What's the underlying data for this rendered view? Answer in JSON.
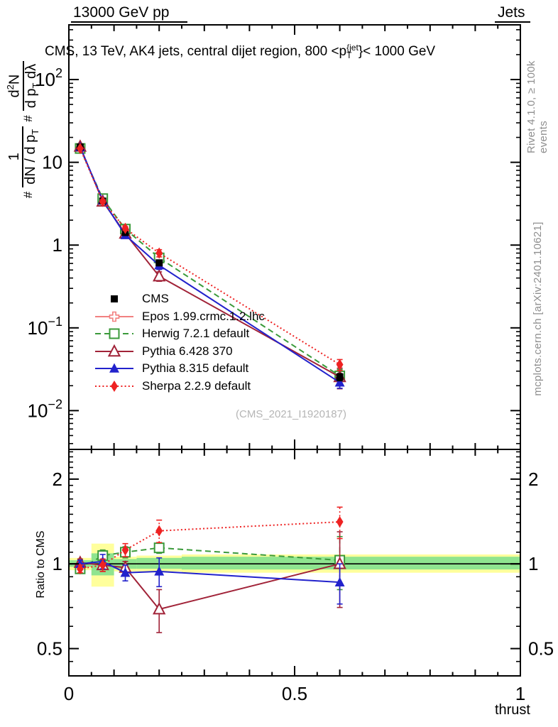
{
  "header": {
    "left": "13000 GeV pp",
    "right": "Jets"
  },
  "title": {
    "pre": "CMS, 13 TeV, AK4 jets, central dijet region, 800 <p",
    "sup": "{jet",
    "sub": "T",
    "post": "}< 1000 GeV"
  },
  "ylabel": {
    "hash1": "#",
    "f1num": "1",
    "f1den": "dN / d p",
    "f1den_sub": "T",
    "hash2": "#",
    "f2num_a": "d",
    "f2num_sup": "2",
    "f2num_b": "N",
    "f2den_a": "d p",
    "f2den_sub": "T",
    "f2den_b": " dλ"
  },
  "ratio_ylabel": "Ratio to CMS",
  "watermark": "(CMS_2021_I1920187)",
  "side_notes": {
    "top": "Rivet 4.1.0, ≥ 100k events",
    "bottom": "mcplots.cern.ch [arXiv:2401.10621]"
  },
  "band_colors": {
    "yellow": "#ffff9c",
    "green": "#8fe48f"
  },
  "legend": [
    {
      "label": "CMS",
      "color": "#000000",
      "marker": "square-filled",
      "line": "none",
      "marker_size": 10
    },
    {
      "label": "Epos 1.99.crmc.1.2.lhc",
      "color": "#f28080",
      "marker": "plus-open",
      "line": "solid",
      "marker_size": 13
    },
    {
      "label": "Herwig 7.2.1 default",
      "color": "#3a9a3a",
      "marker": "square-open",
      "line": "dashed",
      "marker_size": 13
    },
    {
      "label": "Pythia 6.428 370",
      "color": "#a12338",
      "marker": "triangle-open",
      "line": "solid",
      "marker_size": 13
    },
    {
      "label": "Pythia 8.315 default",
      "color": "#2222cc",
      "marker": "triangle-filled",
      "line": "solid",
      "marker_size": 12
    },
    {
      "label": "Sherpa 2.2.9 default",
      "color": "#ee2222",
      "marker": "diamond-filled",
      "line": "dotted",
      "marker_size": 13
    }
  ],
  "chart_data": {
    "type": "line",
    "xlabel": "thrust",
    "xlim": [
      0,
      1
    ],
    "x": [
      0.025,
      0.075,
      0.125,
      0.2,
      0.6
    ],
    "xticks": [
      {
        "label": "0",
        "value": 0
      },
      {
        "label": "0.5",
        "value": 0.5
      },
      {
        "label": "1",
        "value": 1
      }
    ],
    "main": {
      "ylog": true,
      "ylim": [
        0.0034,
        458
      ],
      "yticks": [
        {
          "base": "10",
          "exp": "2",
          "value": 100
        },
        {
          "base": "10",
          "exp": "",
          "value": 10
        },
        {
          "base": "1",
          "exp": "",
          "value": 1
        },
        {
          "base": "10",
          "exp": "−1",
          "value": 0.1
        },
        {
          "base": "10",
          "exp": "−2",
          "value": 0.01
        }
      ],
      "series": [
        {
          "name": "Herwig 7.2.1 default",
          "values": [
            14.7,
            3.64,
            1.56,
            0.7,
            0.0263
          ],
          "rel_err": [
            0.02,
            0.05,
            0.04,
            0.05,
            0.2
          ]
        },
        {
          "name": "Pythia 6.428 370",
          "values": [
            15.5,
            3.37,
            1.38,
            0.42,
            0.0255
          ],
          "rel_err": [
            0.02,
            0.05,
            0.05,
            0.13,
            0.28
          ]
        },
        {
          "name": "Pythia 8.315 default",
          "values": [
            15.3,
            3.47,
            1.32,
            0.57,
            0.0219
          ],
          "rel_err": [
            0.02,
            0.06,
            0.05,
            0.11,
            0.15
          ]
        },
        {
          "name": "CMS",
          "values": [
            15.3,
            3.4,
            1.42,
            0.61,
            0.0255
          ],
          "rel_err": [
            0.04,
            0.04,
            0.05,
            0.06,
            0.1
          ]
        },
        {
          "name": "Sherpa 2.2.9 default",
          "values": [
            14.7,
            3.37,
            1.59,
            0.8,
            0.036
          ],
          "rel_err": [
            0.02,
            0.05,
            0.05,
            0.1,
            0.15
          ]
        }
      ]
    },
    "ratio": {
      "ylog": true,
      "ylim": [
        0.4,
        2.55
      ],
      "yticks": [
        {
          "label": "2",
          "value": 2
        },
        {
          "label": "1",
          "value": 1
        },
        {
          "label": "0.5",
          "value": 0.5
        }
      ],
      "reference": 1,
      "bands": [
        {
          "x0": 0.0,
          "x1": 0.05,
          "ylo": 0.95,
          "yhi": 1.05,
          "glo": 0.975,
          "ghi": 1.03
        },
        {
          "x0": 0.05,
          "x1": 0.1,
          "ylo": 0.83,
          "yhi": 1.18,
          "glo": 0.91,
          "ghi": 1.09
        },
        {
          "x0": 0.1,
          "x1": 0.15,
          "ylo": 0.94,
          "yhi": 1.06,
          "glo": 0.96,
          "ghi": 1.04
        },
        {
          "x0": 0.15,
          "x1": 0.25,
          "ylo": 0.94,
          "yhi": 1.07,
          "glo": 0.96,
          "ghi": 1.05
        },
        {
          "x0": 0.25,
          "x1": 1.0,
          "ylo": 0.93,
          "yhi": 1.08,
          "glo": 0.955,
          "ghi": 1.06
        }
      ],
      "series": [
        {
          "name": "Herwig 7.2.1 default",
          "values": [
            0.96,
            1.07,
            1.1,
            1.14,
            1.03
          ],
          "err": [
            0.03,
            0.05,
            0.05,
            0.05,
            0.22
          ]
        },
        {
          "name": "Pythia 6.428 370",
          "values": [
            1.01,
            0.99,
            0.97,
            0.69,
            1.0
          ],
          "err": [
            0.03,
            0.05,
            0.05,
            0.12,
            0.3
          ]
        },
        {
          "name": "Pythia 8.315 default",
          "values": [
            1.0,
            1.02,
            0.93,
            0.94,
            0.86
          ],
          "err": [
            0.03,
            0.06,
            0.06,
            0.11,
            0.14
          ]
        },
        {
          "name": "Sherpa 2.2.9 default",
          "values": [
            0.96,
            0.99,
            1.12,
            1.31,
            1.41
          ],
          "err": [
            0.03,
            0.05,
            0.06,
            0.12,
            0.18
          ]
        }
      ]
    }
  }
}
